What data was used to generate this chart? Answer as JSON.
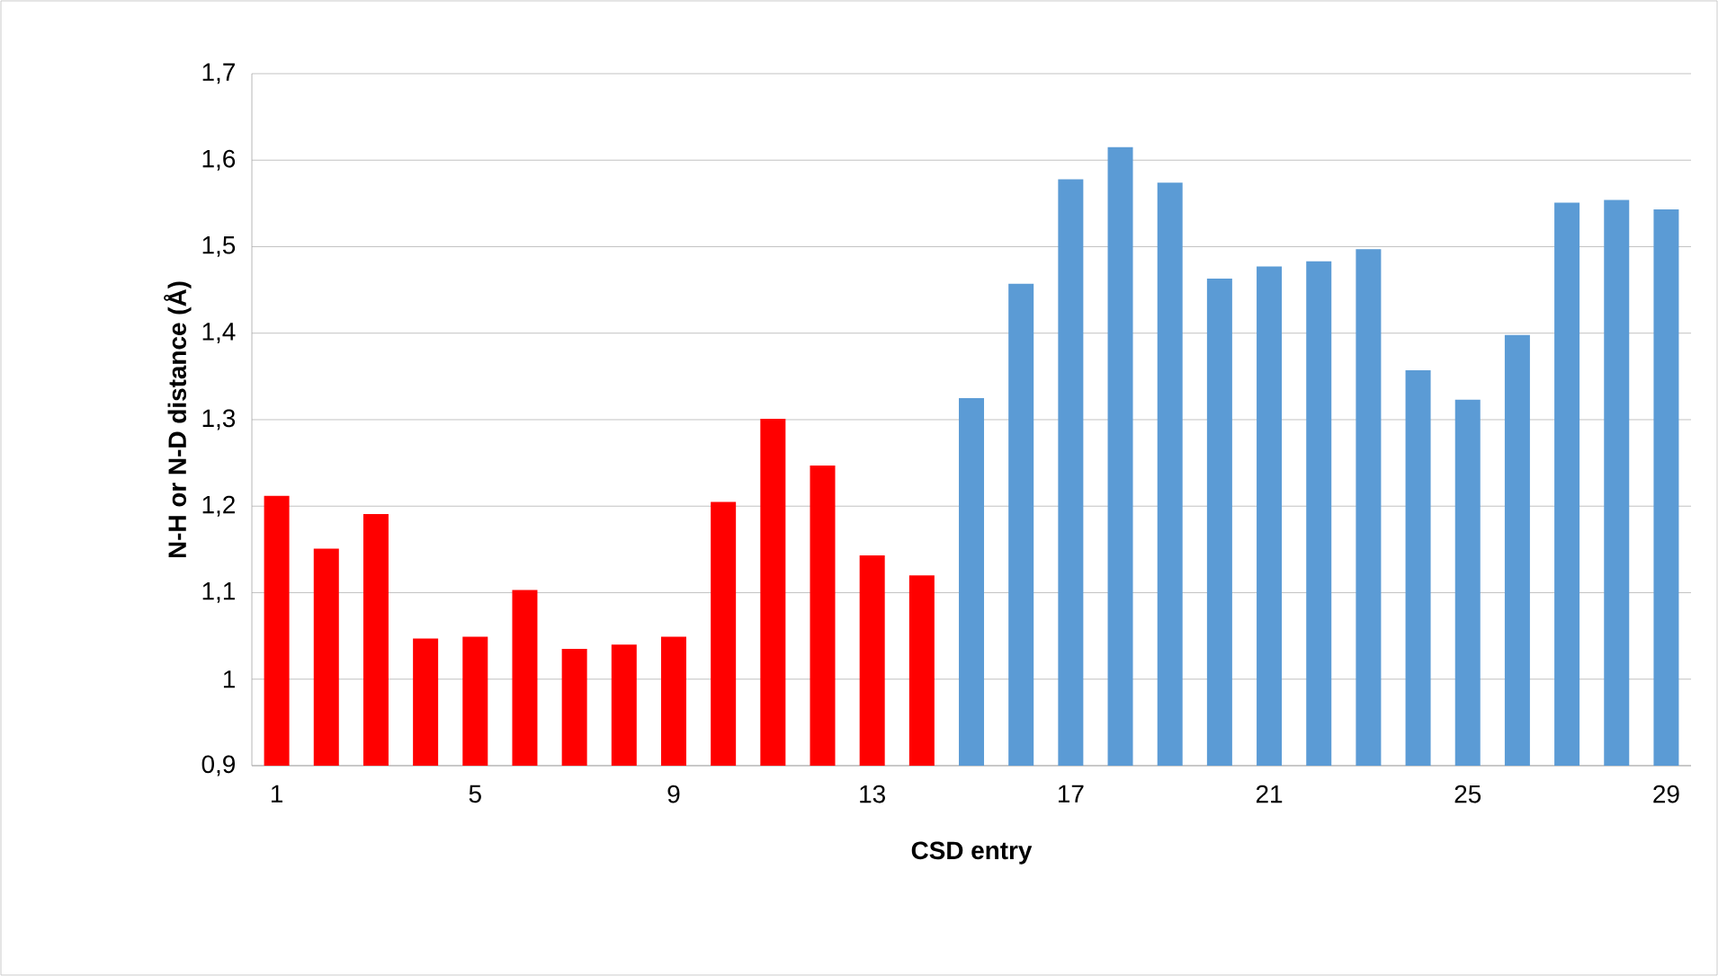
{
  "chart_data": {
    "type": "bar",
    "xlabel": "CSD entry",
    "ylabel": "N-H or N-D distance (Å)",
    "categories": [
      "1",
      null,
      null,
      null,
      "5",
      null,
      null,
      null,
      "9",
      null,
      null,
      null,
      "13",
      null,
      null,
      null,
      "17",
      null,
      null,
      null,
      "21",
      null,
      null,
      null,
      "25",
      null,
      null,
      null,
      "29"
    ],
    "values": [
      1.212,
      1.151,
      1.191,
      1.047,
      1.049,
      1.103,
      1.035,
      1.04,
      1.049,
      1.205,
      1.301,
      1.247,
      1.143,
      1.12,
      1.325,
      1.457,
      1.578,
      1.615,
      1.574,
      1.463,
      1.477,
      1.483,
      1.497,
      1.357,
      1.323,
      1.398,
      1.551,
      1.554,
      1.543
    ],
    "colors": [
      "#ff0000",
      "#ff0000",
      "#ff0000",
      "#ff0000",
      "#ff0000",
      "#ff0000",
      "#ff0000",
      "#ff0000",
      "#ff0000",
      "#ff0000",
      "#ff0000",
      "#ff0000",
      "#ff0000",
      "#ff0000",
      "#5b9bd5",
      "#5b9bd5",
      "#5b9bd5",
      "#5b9bd5",
      "#5b9bd5",
      "#5b9bd5",
      "#5b9bd5",
      "#5b9bd5",
      "#5b9bd5",
      "#5b9bd5",
      "#5b9bd5",
      "#5b9bd5",
      "#5b9bd5",
      "#5b9bd5",
      "#5b9bd5"
    ],
    "ylim": [
      0.9,
      1.7
    ],
    "yticks": [
      {
        "value": 0.9,
        "label": "0,9"
      },
      1,
      {
        "value": 1.1,
        "label": "1,1"
      },
      {
        "value": 1.2,
        "label": "1,2"
      },
      {
        "value": 1.3,
        "label": "1,3"
      },
      {
        "value": 1.4,
        "label": "1,4"
      },
      {
        "value": 1.5,
        "label": "1,5"
      },
      {
        "value": 1.6,
        "label": "1,6"
      },
      {
        "value": 1.7,
        "label": "1,7"
      }
    ],
    "grid": "y"
  }
}
